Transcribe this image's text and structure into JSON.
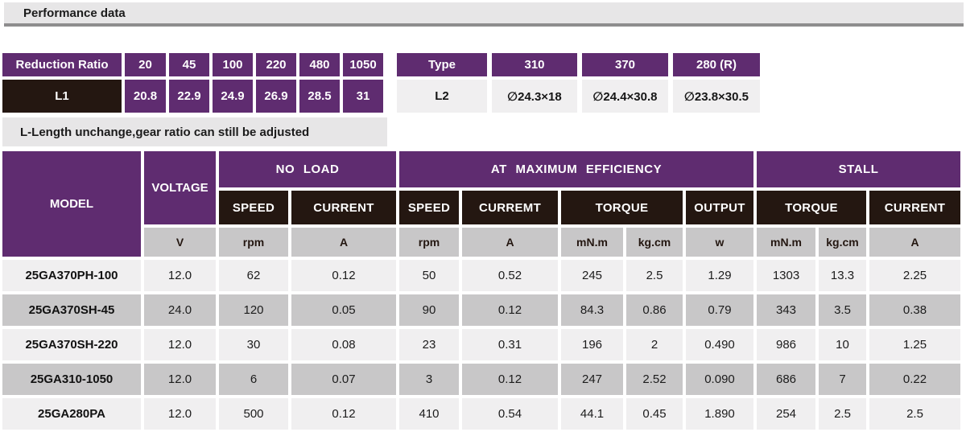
{
  "page": {
    "title": "Performance data"
  },
  "reduction_table": {
    "header_label": "Reduction Ratio",
    "ratios": [
      "20",
      "45",
      "100",
      "220",
      "480",
      "1050"
    ],
    "row_label": "L1",
    "l1_values": [
      "20.8",
      "22.9",
      "24.9",
      "26.9",
      "28.5",
      "31"
    ]
  },
  "type_table": {
    "header_label": "Type",
    "type_values": [
      "310",
      "370",
      "280 (R)"
    ],
    "row_label": "L2",
    "l2_values": [
      "∅24.3×18",
      "∅24.4×30.8",
      "∅23.8×30.5"
    ]
  },
  "note": "L-Length unchange,gear ratio can still be adjusted",
  "performance_table": {
    "model_header": "MODEL",
    "voltage_header": "VOLTAGE",
    "group_headers": [
      "NO LOAD",
      "AT MAXIMUM EFFICIENCY",
      "STALL"
    ],
    "sub_headers": {
      "no_load_speed": "SPEED",
      "no_load_current": "CURRENT",
      "max_eff_speed": "SPEED",
      "max_eff_current": "CURREMT",
      "max_eff_torque": "TORQUE",
      "max_eff_output": "OUTPUT",
      "stall_torque": "TORQUE",
      "stall_current": "CURRENT"
    },
    "units": [
      "V",
      "rpm",
      "A",
      "rpm",
      "A",
      "mN.m",
      "kg.cm",
      "w",
      "mN.m",
      "kg.cm",
      "A"
    ],
    "rows": [
      {
        "model": "25GA370PH-100",
        "values": [
          "12.0",
          "62",
          "0.12",
          "50",
          "0.52",
          "245",
          "2.5",
          "1.29",
          "1303",
          "13.3",
          "2.25"
        ]
      },
      {
        "model": "25GA370SH-45",
        "values": [
          "24.0",
          "120",
          "0.05",
          "90",
          "0.12",
          "84.3",
          "0.86",
          "0.79",
          "343",
          "3.5",
          "0.38"
        ]
      },
      {
        "model": "25GA370SH-220",
        "values": [
          "12.0",
          "30",
          "0.08",
          "23",
          "0.31",
          "196",
          "2",
          "0.490",
          "986",
          "10",
          "1.25"
        ]
      },
      {
        "model": "25GA310-1050",
        "values": [
          "12.0",
          "6",
          "0.07",
          "3",
          "0.12",
          "247",
          "2.52",
          "0.090",
          "686",
          "7",
          "0.22"
        ]
      },
      {
        "model": "25GA280PA",
        "values": [
          "12.0",
          "500",
          "0.12",
          "410",
          "0.54",
          "44.1",
          "0.45",
          "1.890",
          "254",
          "2.5",
          "2.5"
        ]
      }
    ]
  },
  "colors": {
    "purple": "#5f2c70",
    "dark": "#241711",
    "gray-cell": "#c8c7c8",
    "light-cell": "#f0eff0",
    "bar-gray": "#e7e6e7",
    "underline-gray": "#8e8d8e"
  }
}
